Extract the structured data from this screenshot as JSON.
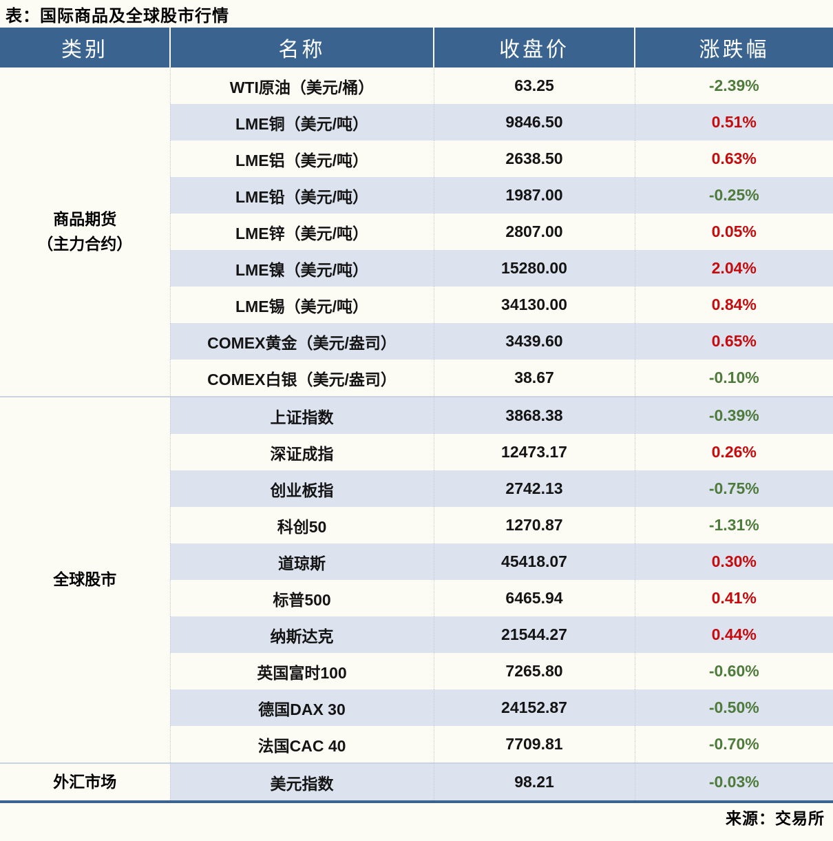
{
  "chart_data": {
    "type": "table",
    "title": "表：国际商品及全球股市行情",
    "source": "来源：交易所",
    "columns": [
      "类别",
      "名称",
      "收盘价",
      "涨跌幅"
    ],
    "sections": [
      {
        "category": "商品期货\n（主力合约）",
        "rows": [
          {
            "name": "WTI原油（美元/桶）",
            "close": "63.25",
            "change": "-2.39%"
          },
          {
            "name": "LME铜（美元/吨）",
            "close": "9846.50",
            "change": "0.51%"
          },
          {
            "name": "LME铝（美元/吨）",
            "close": "2638.50",
            "change": "0.63%"
          },
          {
            "name": "LME铅（美元/吨）",
            "close": "1987.00",
            "change": "-0.25%"
          },
          {
            "name": "LME锌（美元/吨）",
            "close": "2807.00",
            "change": "0.05%"
          },
          {
            "name": "LME镍（美元/吨）",
            "close": "15280.00",
            "change": "2.04%"
          },
          {
            "name": "LME锡（美元/吨）",
            "close": "34130.00",
            "change": "0.84%"
          },
          {
            "name": "COMEX黄金（美元/盎司）",
            "close": "3439.60",
            "change": "0.65%"
          },
          {
            "name": "COMEX白银（美元/盎司）",
            "close": "38.67",
            "change": "-0.10%"
          }
        ]
      },
      {
        "category": "全球股市",
        "rows": [
          {
            "name": "上证指数",
            "close": "3868.38",
            "change": "-0.39%"
          },
          {
            "name": "深证成指",
            "close": "12473.17",
            "change": "0.26%"
          },
          {
            "name": "创业板指",
            "close": "2742.13",
            "change": "-0.75%"
          },
          {
            "name": "科创50",
            "close": "1270.87",
            "change": "-1.31%"
          },
          {
            "name": "道琼斯",
            "close": "45418.07",
            "change": "0.30%"
          },
          {
            "name": "标普500",
            "close": "6465.94",
            "change": "0.41%"
          },
          {
            "name": "纳斯达克",
            "close": "21544.27",
            "change": "0.44%"
          },
          {
            "name": "英国富时100",
            "close": "7265.80",
            "change": "-0.60%"
          },
          {
            "name": "德国DAX 30",
            "close": "24152.87",
            "change": "-0.50%"
          },
          {
            "name": "法国CAC 40",
            "close": "7709.81",
            "change": "-0.70%"
          }
        ]
      },
      {
        "category": "外汇市场",
        "rows": [
          {
            "name": "美元指数",
            "close": "98.21",
            "change": "-0.03%"
          }
        ]
      }
    ],
    "colors": {
      "header_bg": "#3A648F",
      "stripe_bg": "#DCE3EE",
      "positive_red": "#C50B0E",
      "negative_green": "#4E7B3C",
      "bottom_border": "#3A648F",
      "page_bg": "#FDFCF4"
    },
    "layout": {
      "legend_position": "none",
      "grid": "row-stripes",
      "change_color_convention": "red=up, green=down"
    }
  }
}
